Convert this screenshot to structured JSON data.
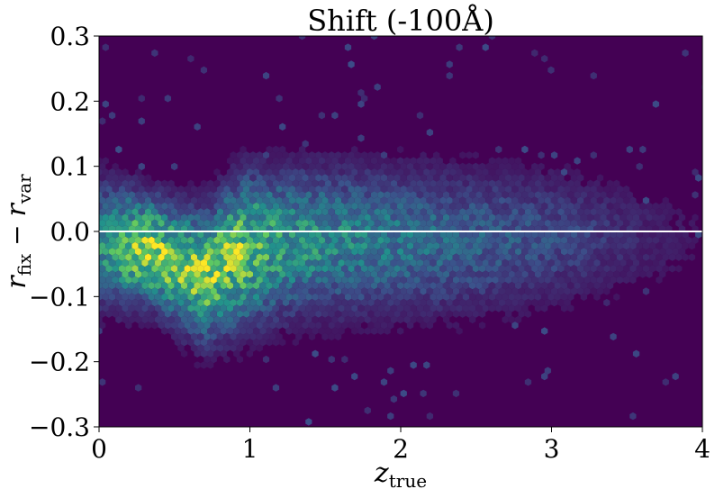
{
  "chart_data": {
    "type": "heatmap",
    "subtype": "hexbin",
    "title": "Shift (-100Å)",
    "xlabel": "z_true",
    "ylabel": "r_fix − r_var",
    "xlim": [
      0,
      4
    ],
    "ylim": [
      -0.3,
      0.3
    ],
    "x_ticks": [
      0,
      1,
      2,
      3,
      4
    ],
    "x_tick_labels": [
      "0",
      "1",
      "2",
      "3",
      "4"
    ],
    "y_ticks": [
      0.3,
      0.2,
      0.1,
      0.0,
      -0.1,
      -0.2,
      -0.3
    ],
    "y_tick_labels": [
      "0.3",
      "0.2",
      "0.1",
      "0.0",
      "−0.1",
      "−0.2",
      "−0.3"
    ],
    "reference_line": {
      "y": 0.0,
      "color": "#ffffff"
    },
    "colormap": "viridis",
    "background_color": "#440154",
    "density_ridge": [
      {
        "z": 0.05,
        "center": -0.02,
        "spread": 0.06,
        "density": 0.6
      },
      {
        "z": 0.2,
        "center": -0.025,
        "spread": 0.055,
        "density": 0.85
      },
      {
        "z": 0.35,
        "center": -0.03,
        "spread": 0.05,
        "density": 1.0
      },
      {
        "z": 0.5,
        "center": -0.05,
        "spread": 0.055,
        "density": 0.9
      },
      {
        "z": 0.7,
        "center": -0.07,
        "spread": 0.06,
        "density": 0.95
      },
      {
        "z": 0.95,
        "center": -0.03,
        "spread": 0.07,
        "density": 0.9
      },
      {
        "z": 1.2,
        "center": -0.02,
        "spread": 0.07,
        "density": 0.65
      },
      {
        "z": 1.5,
        "center": -0.015,
        "spread": 0.07,
        "density": 0.55
      },
      {
        "z": 2.0,
        "center": -0.015,
        "spread": 0.07,
        "density": 0.45
      },
      {
        "z": 2.5,
        "center": -0.015,
        "spread": 0.07,
        "density": 0.35
      },
      {
        "z": 3.0,
        "center": -0.01,
        "spread": 0.065,
        "density": 0.28
      },
      {
        "z": 3.5,
        "center": -0.01,
        "spread": 0.06,
        "density": 0.15
      },
      {
        "z": 4.0,
        "center": -0.01,
        "spread": 0.055,
        "density": 0.06
      }
    ]
  }
}
